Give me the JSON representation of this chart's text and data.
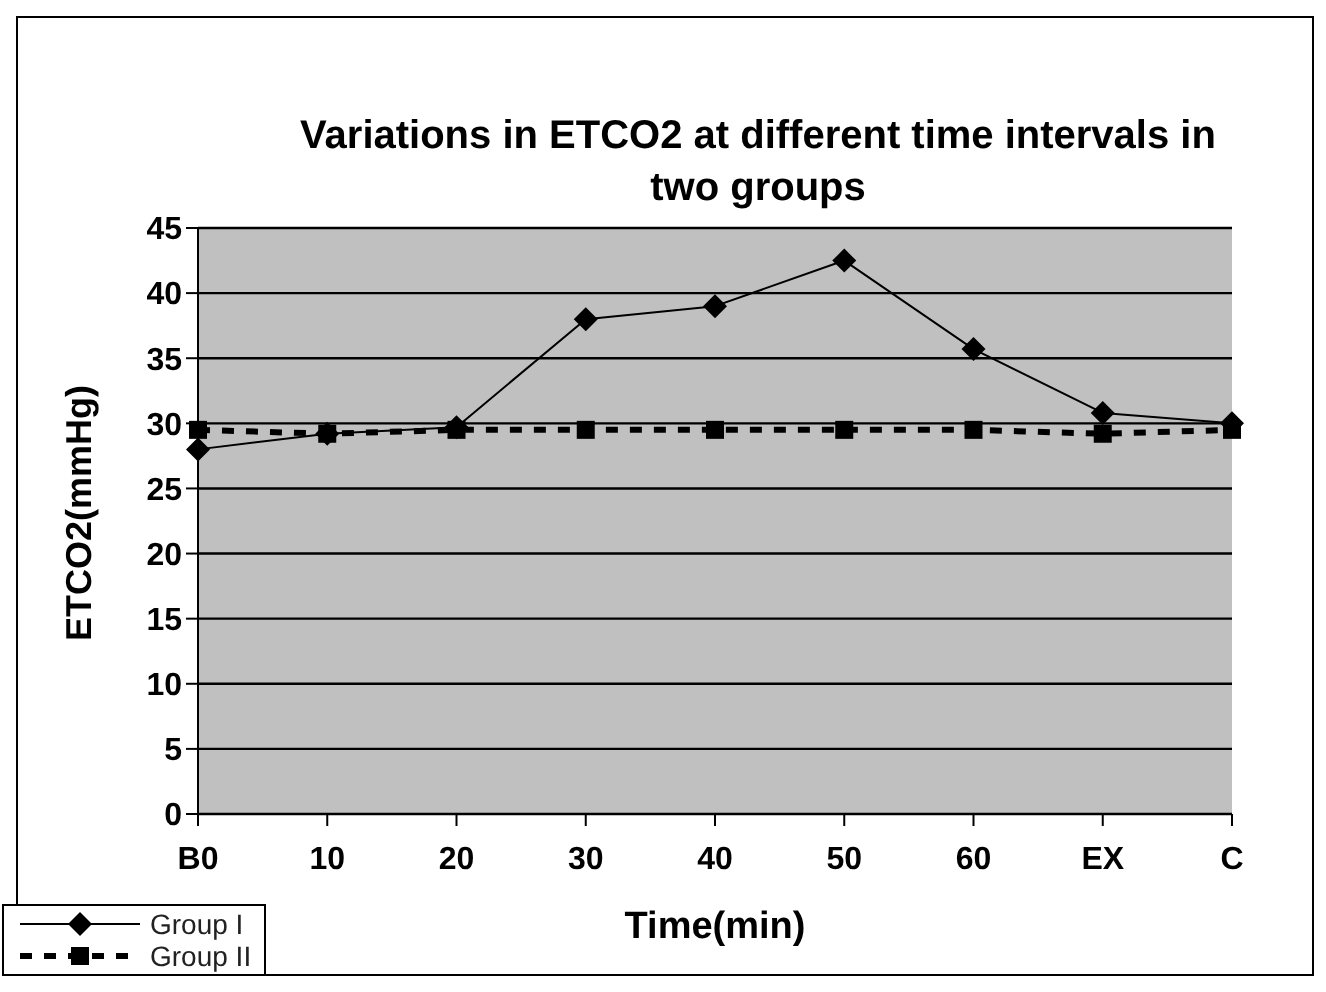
{
  "chart_data": {
    "type": "line",
    "title": "Variations in ETCO2 at different time intervals in two groups",
    "xlabel": "Time(min)",
    "ylabel": "ETCO2(mmHg)",
    "categories": [
      "B0",
      "10",
      "20",
      "30",
      "40",
      "50",
      "60",
      "EX",
      "C"
    ],
    "series": [
      {
        "name": "Group I",
        "color": "#000000",
        "marker": "diamond",
        "line_style": "solid",
        "values": [
          28,
          29.2,
          29.7,
          38,
          39,
          42.5,
          35.7,
          30.8,
          30
        ]
      },
      {
        "name": "Group II",
        "color": "#000000",
        "marker": "square",
        "line_style": "dashed",
        "values": [
          29.5,
          29.2,
          29.5,
          29.5,
          29.5,
          29.5,
          29.5,
          29.2,
          29.5
        ]
      }
    ],
    "ylim": [
      0,
      45
    ],
    "yticks": [
      0,
      5,
      10,
      15,
      20,
      25,
      30,
      35,
      40,
      45
    ],
    "grid": "y",
    "legend": "bottom left"
  }
}
